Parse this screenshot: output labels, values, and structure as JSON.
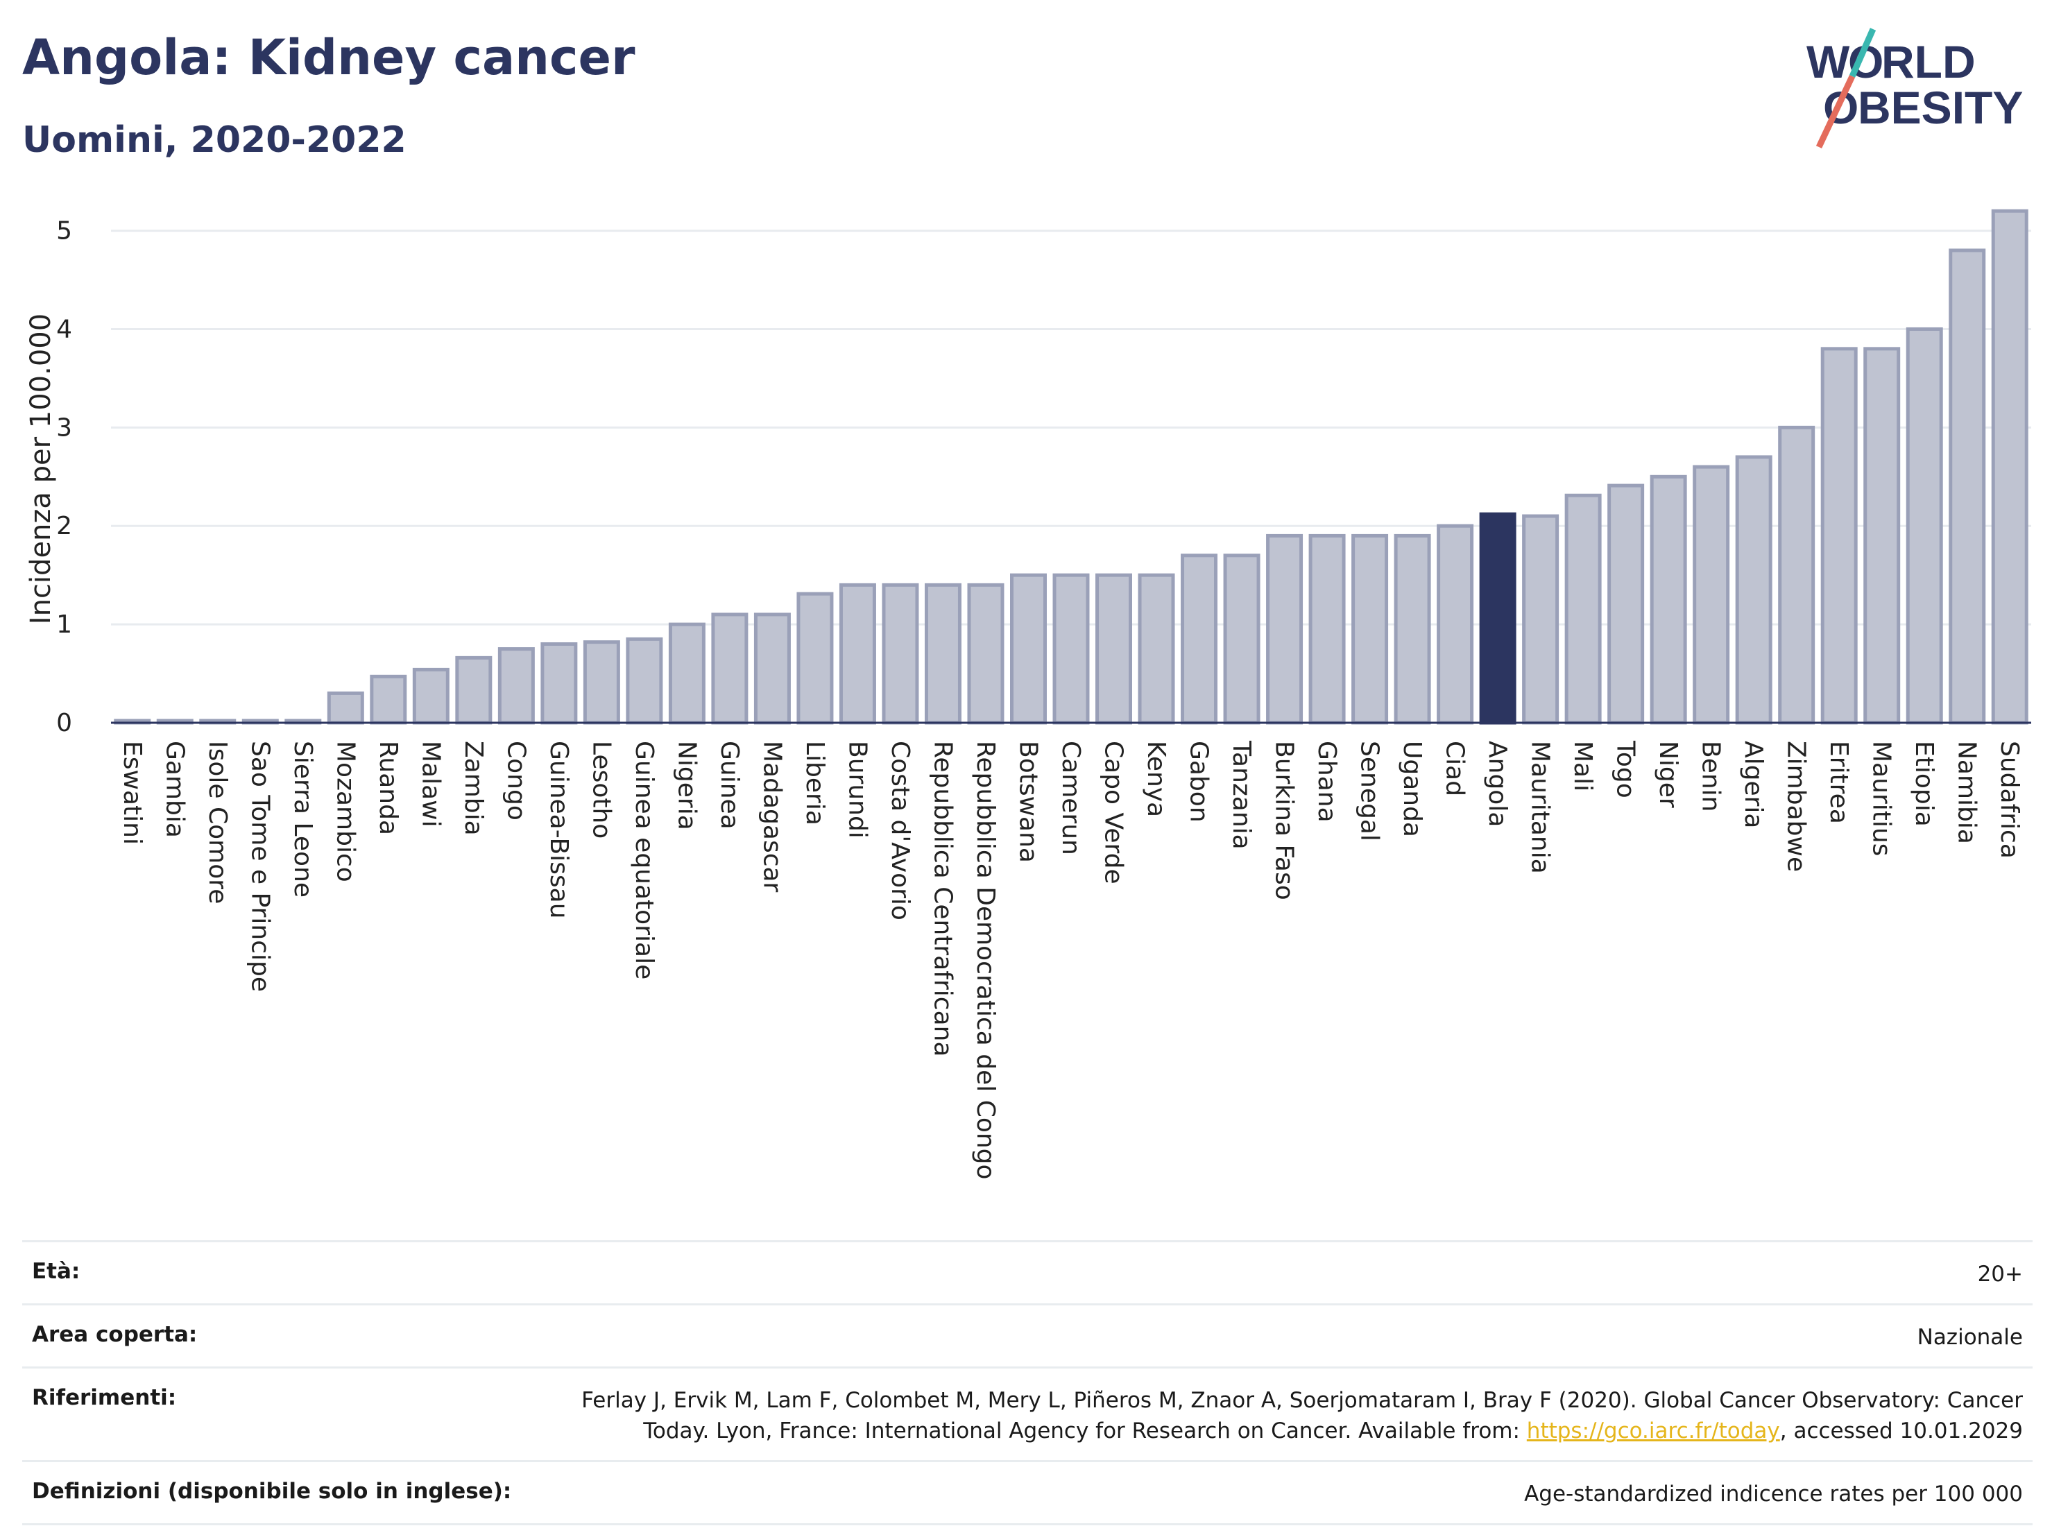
{
  "header": {
    "title": "Angola: Kidney cancer",
    "subtitle": "Uomini, 2020-2022",
    "logo_text": "WORLD OBESITY"
  },
  "colors": {
    "bar": "#bfc3d1",
    "bar_border": "#9aa0b8",
    "highlight": "#2c3560",
    "title": "#2c3560",
    "link": "#e5b51b"
  },
  "chart_data": {
    "type": "bar",
    "title": "Angola: Kidney cancer",
    "subtitle": "Uomini, 2020-2022",
    "xlabel": "",
    "ylabel": "Incidenza per 100.000",
    "ylim": [
      0,
      5.3
    ],
    "yticks": [
      0,
      1,
      2,
      3,
      4,
      5
    ],
    "grid": true,
    "highlight": "Angola",
    "categories": [
      "Eswatini",
      "Gambia",
      "Isole Comore",
      "Sao Tome e Principe",
      "Sierra Leone",
      "Mozambico",
      "Ruanda",
      "Malawi",
      "Zambia",
      "Congo",
      "Guinea-Bissau",
      "Lesotho",
      "Guinea equatoriale",
      "Nigeria",
      "Guinea",
      "Madagascar",
      "Liberia",
      "Burundi",
      "Costa d'Avorio",
      "Repubblica Centrafricana",
      "Repubblica Democratica del Congo",
      "Botswana",
      "Camerun",
      "Capo Verde",
      "Kenya",
      "Gabon",
      "Tanzania",
      "Burkina Faso",
      "Ghana",
      "Senegal",
      "Uganda",
      "Ciad",
      "Angola",
      "Mauritania",
      "Mali",
      "Togo",
      "Niger",
      "Benin",
      "Algeria",
      "Zimbabwe",
      "Eritrea",
      "Mauritius",
      "Etiopia",
      "Namibia",
      "Sudafrica"
    ],
    "values": [
      0.02,
      0.02,
      0.02,
      0.02,
      0.02,
      0.3,
      0.47,
      0.54,
      0.66,
      0.75,
      0.8,
      0.82,
      0.85,
      1.0,
      1.1,
      1.1,
      1.31,
      1.4,
      1.4,
      1.4,
      1.4,
      1.5,
      1.5,
      1.5,
      1.5,
      1.7,
      1.7,
      1.9,
      1.9,
      1.9,
      1.9,
      2.0,
      2.12,
      2.1,
      2.31,
      2.41,
      2.5,
      2.6,
      2.7,
      3.0,
      3.8,
      3.8,
      4.0,
      4.8,
      5.2
    ]
  },
  "meta": {
    "age_label": "Età:",
    "age_value": "20+",
    "area_label": "Area coperta:",
    "area_value": "Nazionale",
    "ref_label": "Riferimenti:",
    "ref_line1": "Ferlay J, Ervik M, Lam F, Colombet M, Mery L, Piñeros M, Znaor A, Soerjomataram I, Bray F (2020). Global Cancer Observatory: Cancer",
    "ref_line2_pre": "Today. Lyon, France: International Agency for Research on Cancer. Available from: ",
    "ref_link": "https://gco.iarc.fr/today",
    "ref_line2_post": ", accessed 10.01.2029",
    "def_label": "Definizioni (disponibile solo in inglese):",
    "def_value": "Age-standardized indicence rates per 100 000"
  }
}
